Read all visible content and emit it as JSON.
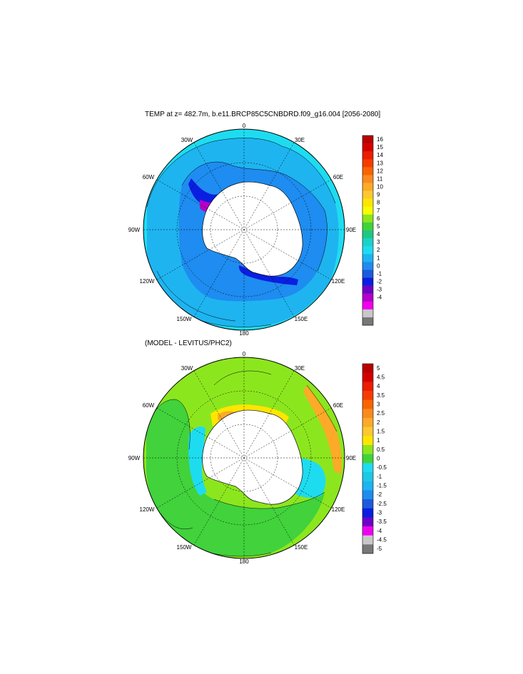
{
  "panels": [
    {
      "id": "top",
      "title": "TEMP at z= 482.7m, b.e11.BRCP85C5CNBDRD.f09_g16.004 [2056-2080]",
      "longitude_labels": [
        "0",
        "30E",
        "60E",
        "90E",
        "120E",
        "150E",
        "180",
        "150W",
        "120W",
        "90W",
        "60W",
        "30W"
      ],
      "colorbar": {
        "labels": [
          "16",
          "15",
          "14",
          "13",
          "12",
          "11",
          "10",
          "9",
          "8",
          "7",
          "6",
          "5",
          "4",
          "3",
          "2",
          "1",
          "0",
          "-1",
          "-2",
          "-3",
          "-4"
        ],
        "colors": [
          "#b80000",
          "#d40000",
          "#ea1e00",
          "#f53c00",
          "#f86400",
          "#fb8a1e",
          "#fcaa28",
          "#fdc831",
          "#ffe600",
          "#f5ff00",
          "#8ce61e",
          "#41d23c",
          "#1ec882",
          "#19d2c8",
          "#1edcf0",
          "#1eb4f0",
          "#1e8cf0",
          "#1e5adc",
          "#0a1ee1",
          "#6e00c8",
          "#b400c8",
          "#f000f0",
          "#c8c8c8",
          "#787878"
        ]
      },
      "field_colors": {
        "shelf_cold": "#0a1ee1",
        "deep_ocean": "#1e8cf0",
        "mid_ocean": "#1eb4f0",
        "north_rim": "#1edcf0",
        "purple_pockets": "#b400c8"
      }
    },
    {
      "id": "bottom",
      "title": "(MODEL - LEVITUS/PHC2)",
      "longitude_labels": [
        "0",
        "30E",
        "60E",
        "90E",
        "120E",
        "150E",
        "180",
        "150W",
        "120W",
        "90W",
        "60W",
        "30W"
      ],
      "colorbar": {
        "labels": [
          "5",
          "4.5",
          "4",
          "3.5",
          "3",
          "2.5",
          "2",
          "1.5",
          "1",
          "0.5",
          "0",
          "-0.5",
          "-1",
          "-1.5",
          "-2",
          "-2.5",
          "-3",
          "-3.5",
          "-4",
          "-4.5",
          "-5"
        ],
        "colors": [
          "#b80000",
          "#d40000",
          "#ea1e00",
          "#f53c00",
          "#f86400",
          "#fb8a1e",
          "#fcaa28",
          "#fdc831",
          "#ffe600",
          "#8ce61e",
          "#41d23c",
          "#1edcf0",
          "#1ec8e6",
          "#1eb4f0",
          "#1e8cf0",
          "#1e5adc",
          "#0a1ee1",
          "#6e00c8",
          "#f000f0",
          "#c8c8c8",
          "#787878"
        ]
      },
      "field_colors": {
        "background_green": "#8ce61e",
        "mid_green": "#41d23c",
        "cyan": "#1edcf0",
        "yellow": "#ffe600",
        "orange": "#fcaa28"
      }
    }
  ]
}
